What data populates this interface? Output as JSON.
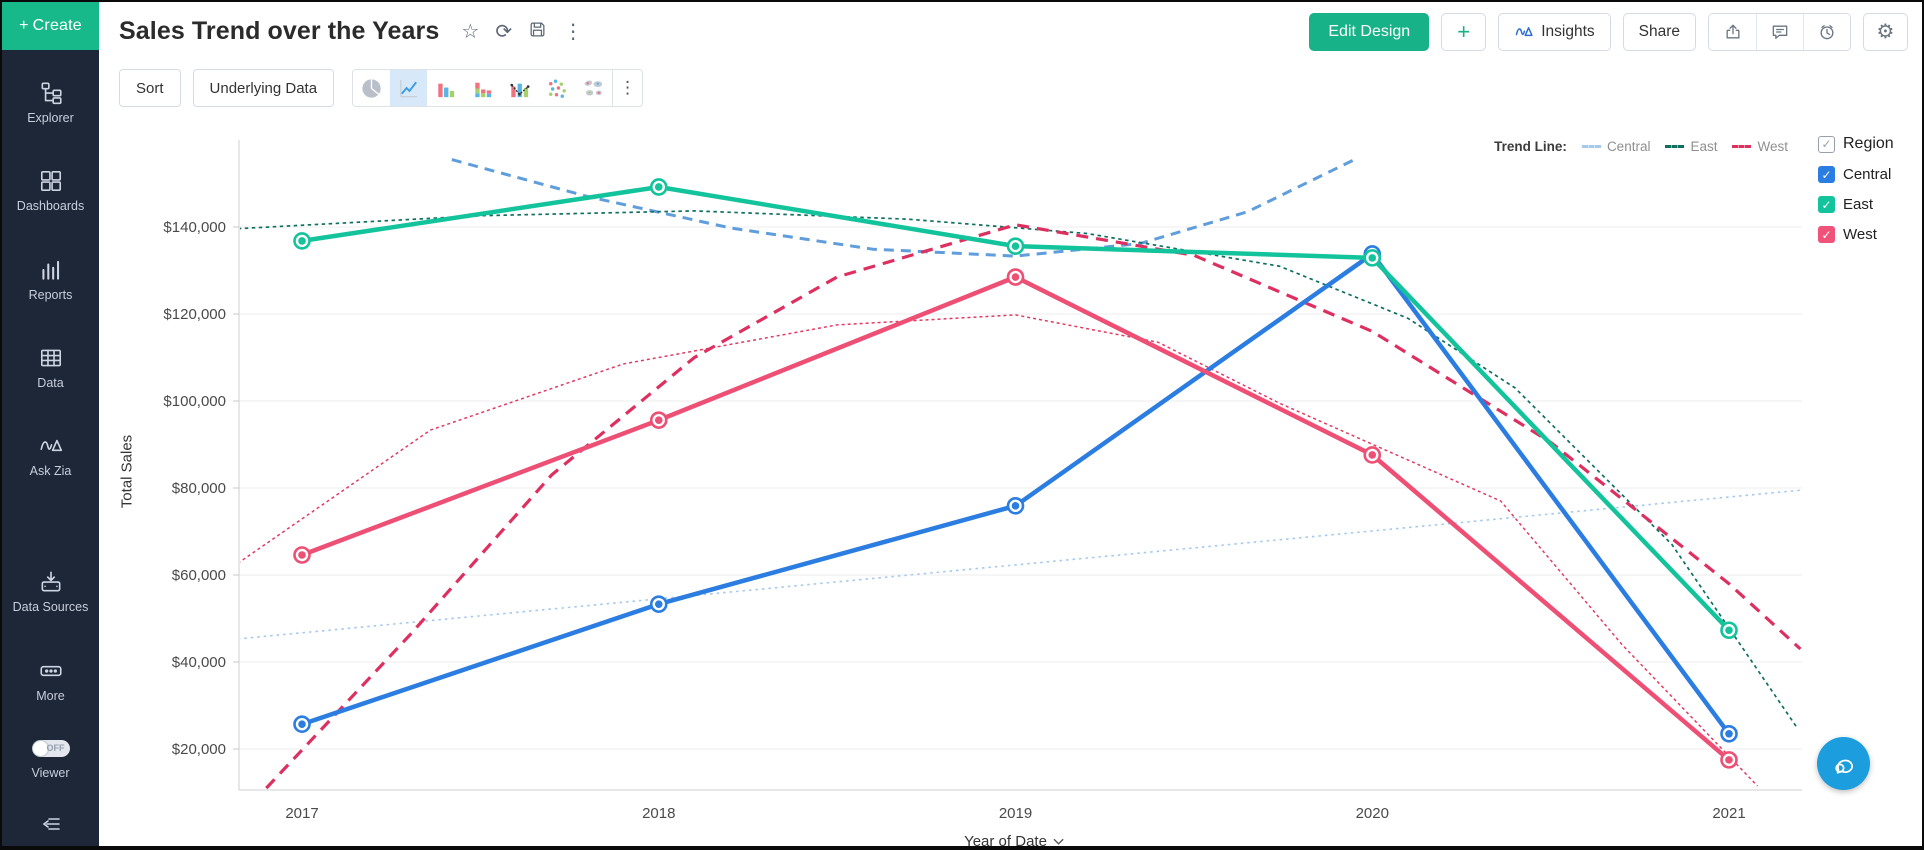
{
  "sidebar": {
    "create_label": "Create",
    "items": [
      {
        "id": "explorer",
        "label": "Explorer",
        "icon": "explorer-icon"
      },
      {
        "id": "dashboards",
        "label": "Dashboards",
        "icon": "dashboards-icon"
      },
      {
        "id": "reports",
        "label": "Reports",
        "icon": "reports-icon"
      },
      {
        "id": "data",
        "label": "Data",
        "icon": "data-icon"
      },
      {
        "id": "ask-zia",
        "label": "Ask Zia",
        "icon": "zia-icon"
      },
      {
        "id": "data-sources",
        "label": "Data Sources",
        "icon": "data-sources-icon",
        "gap_before": true
      },
      {
        "id": "more",
        "label": "More",
        "icon": "more-icon"
      }
    ],
    "viewer": {
      "label": "Viewer",
      "toggle_state": "OFF"
    }
  },
  "header": {
    "title": "Sales Trend over the Years",
    "buttons": {
      "edit_design": "Edit Design",
      "add": "+",
      "insights": "Insights",
      "share": "Share"
    }
  },
  "toolbar": {
    "sort_label": "Sort",
    "underlying_data_label": "Underlying Data",
    "chart_types": [
      {
        "id": "pie",
        "selected": false
      },
      {
        "id": "line",
        "selected": true
      },
      {
        "id": "bar",
        "selected": false
      },
      {
        "id": "stacked-bar",
        "selected": false
      },
      {
        "id": "combo",
        "selected": false
      },
      {
        "id": "scatter",
        "selected": false
      },
      {
        "id": "map",
        "selected": false
      }
    ]
  },
  "trend_legend": {
    "label": "Trend Line:",
    "items": [
      {
        "label": "Central",
        "color": "#a6c9ee"
      },
      {
        "label": "East",
        "color": "#0f6f60"
      },
      {
        "label": "West",
        "color": "#dd3060"
      }
    ]
  },
  "region_legend": {
    "title": "Region",
    "items": [
      {
        "label": "Central",
        "color": "#2b7de1",
        "checked": true
      },
      {
        "label": "East",
        "color": "#13c39c",
        "checked": true
      },
      {
        "label": "West",
        "color": "#f0537a",
        "checked": true
      }
    ]
  },
  "chart_data": {
    "type": "line",
    "title": "Sales Trend over the Years",
    "xlabel": "Year of Date",
    "ylabel": "Total Sales",
    "categories": [
      "2017",
      "2018",
      "2019",
      "2020",
      "2021"
    ],
    "series": [
      {
        "name": "Central",
        "color": "#2b7de1",
        "values": [
          25700,
          53300,
          75900,
          133800,
          23500
        ]
      },
      {
        "name": "East",
        "color": "#13c39c",
        "values": [
          136800,
          149200,
          135600,
          132900,
          47300
        ]
      },
      {
        "name": "West",
        "color": "#ee4f74",
        "values": [
          64600,
          95600,
          128500,
          87600,
          17500
        ]
      }
    ],
    "y_ticks": [
      {
        "value": 140000,
        "label": "$140,000"
      },
      {
        "value": 120000,
        "label": "$120,000"
      },
      {
        "value": 100000,
        "label": "$100,000"
      },
      {
        "value": 80000,
        "label": "$80,000"
      },
      {
        "value": 60000,
        "label": "$60,000"
      },
      {
        "value": 40000,
        "label": "$40,000"
      },
      {
        "value": 20000,
        "label": "$20,000"
      }
    ],
    "ylim": [
      7000,
      156000
    ],
    "grid": true,
    "legend_position": "right",
    "trend_lines": [
      {
        "series": "Central",
        "style": "linear",
        "color": "#a6c9ee",
        "width": 1.6,
        "dash": "2.5,4",
        "points": [
          [
            -0.18,
            45300
          ],
          [
            4.2,
            79500
          ]
        ]
      },
      {
        "series": "Central",
        "style": "polynomial",
        "color": "#5f9ddb",
        "width": 3,
        "dash": "10,7",
        "points": [
          [
            0.42,
            155500
          ],
          [
            0.8,
            147000
          ],
          [
            1.2,
            139800
          ],
          [
            1.6,
            134900
          ],
          [
            2.0,
            133300
          ],
          [
            2.35,
            136200
          ],
          [
            2.65,
            143500
          ],
          [
            2.95,
            155500
          ]
        ]
      },
      {
        "series": "East",
        "style": "polynomial",
        "color": "#0f6f60",
        "width": 1.7,
        "dash": "3.5,3.5",
        "points": [
          [
            -0.18,
            139600
          ],
          [
            0.5,
            142600
          ],
          [
            1.1,
            143700
          ],
          [
            1.7,
            141800
          ],
          [
            2.2,
            138500
          ],
          [
            2.74,
            131000
          ],
          [
            3.1,
            119000
          ],
          [
            3.4,
            103000
          ],
          [
            3.84,
            67000
          ],
          [
            4.19,
            25000
          ]
        ]
      },
      {
        "series": "West",
        "style": "polynomial",
        "color": "#dd3060",
        "width": 3.2,
        "dash": "12,8",
        "points": [
          [
            -0.1,
            11000
          ],
          [
            0.3,
            46000
          ],
          [
            0.7,
            83000
          ],
          [
            1.1,
            110000
          ],
          [
            1.5,
            128500
          ],
          [
            2.0,
            140500
          ],
          [
            2.5,
            133500
          ],
          [
            3.0,
            116000
          ],
          [
            3.5,
            90500
          ],
          [
            4.0,
            58000
          ],
          [
            4.2,
            43000
          ]
        ]
      },
      {
        "series": "West",
        "style": "secondary",
        "color": "#e23a62",
        "width": 1.5,
        "dash": "3,3",
        "points": [
          [
            -0.18,
            62700
          ],
          [
            0.36,
            93300
          ],
          [
            0.9,
            108500
          ],
          [
            1.5,
            117500
          ],
          [
            2.0,
            119800
          ],
          [
            2.4,
            113500
          ],
          [
            2.74,
            99500
          ],
          [
            3.36,
            77000
          ],
          [
            3.7,
            44000
          ],
          [
            4.08,
            11500
          ]
        ]
      }
    ]
  },
  "colors": {
    "accent_green": "#17b287",
    "sidebar_bg": "#1d2737",
    "selected_icon_bg": "#d7e8f9",
    "chat_button": "#1b9dde",
    "gridline": "#ececec"
  }
}
